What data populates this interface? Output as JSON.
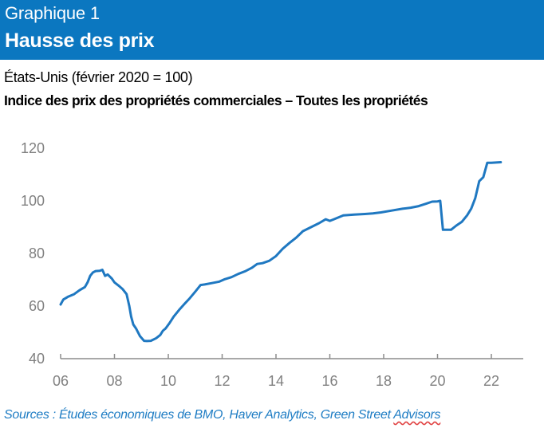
{
  "header": {
    "kicker": "Graphique 1",
    "title": "Hausse des prix",
    "background_color": "#0b77c0"
  },
  "subtitle": "États-Unis (février 2020 = 100)",
  "chart_title": "Indice des prix des propriétés commerciales – Toutes les propriétés",
  "source": {
    "prefix": "Sources : Études économiques de BMO, Haver Analytics, Green Street ",
    "flagged_word": "Advisors"
  },
  "chart_data": {
    "type": "line",
    "title": "Indice des prix des propriétés commerciales – Toutes les propriétés",
    "xlabel": "",
    "ylabel": "",
    "xlim": [
      2006,
      2023.2
    ],
    "ylim": [
      40,
      120
    ],
    "grid": false,
    "legend": "none",
    "line_color": "#1f78c1",
    "x_ticks": [
      2006,
      2008,
      2010,
      2012,
      2014,
      2016,
      2018,
      2020,
      2022
    ],
    "x_tick_labels": [
      "06",
      "08",
      "10",
      "12",
      "14",
      "16",
      "18",
      "20",
      "22"
    ],
    "y_ticks": [
      40,
      60,
      80,
      100,
      120
    ],
    "y_tick_labels": [
      "40",
      "60",
      "80",
      "100",
      "120"
    ],
    "series": [
      {
        "name": "Indice des prix des propriétés commerciales",
        "x": [
          2006.0,
          2006.1,
          2006.27,
          2006.5,
          2006.7,
          2006.9,
          2007.0,
          2007.1,
          2007.2,
          2007.3,
          2007.45,
          2007.55,
          2007.65,
          2007.75,
          2007.9,
          2008.0,
          2008.15,
          2008.3,
          2008.45,
          2008.55,
          2008.62,
          2008.7,
          2008.8,
          2008.95,
          2009.1,
          2009.2,
          2009.35,
          2009.55,
          2009.7,
          2009.8,
          2009.9,
          2010.05,
          2010.2,
          2010.4,
          2010.6,
          2010.8,
          2011.0,
          2011.2,
          2011.35,
          2011.6,
          2011.9,
          2012.1,
          2012.35,
          2012.6,
          2012.85,
          2013.1,
          2013.3,
          2013.5,
          2013.75,
          2014.0,
          2014.25,
          2014.5,
          2014.75,
          2015.0,
          2015.3,
          2015.6,
          2015.85,
          2016.0,
          2016.15,
          2016.5,
          2016.9,
          2017.3,
          2017.6,
          2017.9,
          2018.3,
          2018.7,
          2019.0,
          2019.3,
          2019.6,
          2019.8,
          2020.0,
          2020.1,
          2020.2,
          2020.5,
          2020.7,
          2020.9,
          2021.1,
          2021.25,
          2021.4,
          2021.55,
          2021.7,
          2021.85,
          2022.0,
          2022.35
        ],
        "values": [
          60.6,
          62.5,
          63.5,
          64.5,
          66.0,
          67.2,
          69.0,
          71.5,
          72.8,
          73.3,
          73.4,
          73.8,
          71.5,
          72.0,
          70.5,
          69.0,
          67.8,
          66.5,
          64.5,
          60.0,
          56.0,
          53.0,
          51.5,
          48.5,
          46.8,
          46.7,
          46.8,
          47.8,
          49.0,
          50.6,
          51.5,
          53.6,
          56.0,
          58.5,
          60.8,
          63.0,
          65.5,
          68.0,
          68.2,
          68.7,
          69.3,
          70.2,
          71.0,
          72.2,
          73.2,
          74.5,
          76.0,
          76.3,
          77.2,
          79.0,
          81.8,
          84.0,
          86.0,
          88.5,
          90.0,
          91.5,
          93.0,
          92.4,
          93.0,
          94.5,
          94.8,
          95.0,
          95.2,
          95.6,
          96.3,
          97.0,
          97.4,
          98.0,
          99.0,
          99.7,
          99.8,
          100.0,
          89.0,
          89.0,
          90.6,
          92.0,
          94.5,
          97.0,
          101.0,
          107.5,
          109.0,
          114.5,
          114.5,
          114.7
        ]
      }
    ]
  }
}
